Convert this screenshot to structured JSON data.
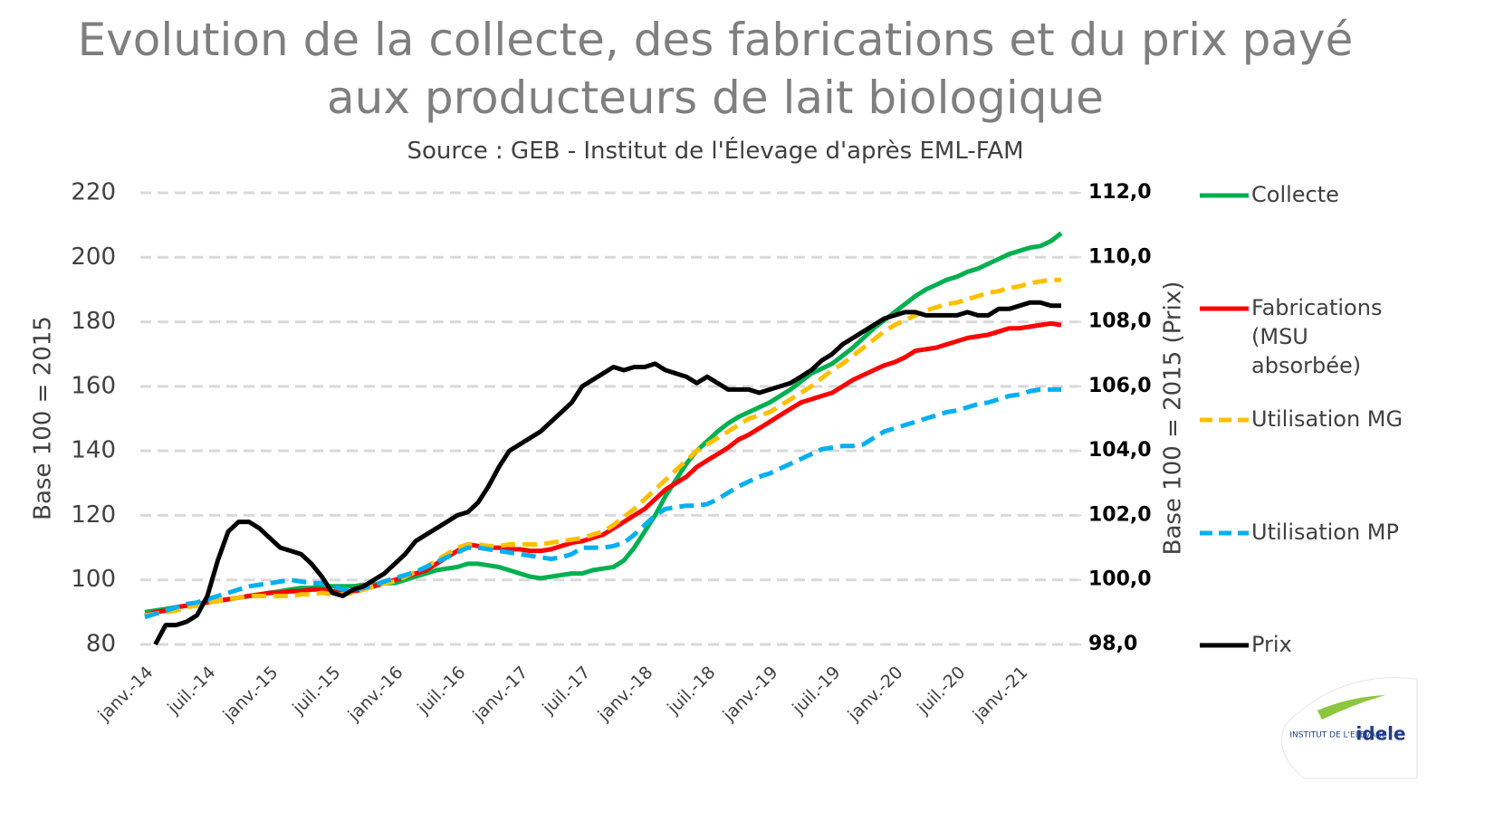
{
  "chart_data": {
    "type": "line",
    "title": "Evolution de la collecte, des fabrications et du prix payé aux producteurs de lait biologique",
    "subtitle": "Source : GEB - Institut de l'Élevage d'après EML-FAM",
    "y_label": "Base 100 = 2015",
    "y2_label": "Base 100 = 2015 (Prix)",
    "logo_text": "INSTITUT DE L'ELEVAGE",
    "logo_brand": "idele",
    "legend": "right",
    "grid": true,
    "categories": [
      "janv.-14",
      null,
      null,
      null,
      null,
      null,
      "juil.-14",
      null,
      null,
      null,
      null,
      null,
      "janv.-15",
      null,
      null,
      null,
      null,
      null,
      "juil.-15",
      null,
      null,
      null,
      null,
      null,
      "janv.-16",
      null,
      null,
      null,
      null,
      null,
      "juil.-16",
      null,
      null,
      null,
      null,
      null,
      "janv.-17",
      null,
      null,
      null,
      null,
      null,
      "juil.-17",
      null,
      null,
      null,
      null,
      null,
      "janv.-18",
      null,
      null,
      null,
      null,
      null,
      "juil.-18",
      null,
      null,
      null,
      null,
      null,
      "janv.-19",
      null,
      null,
      null,
      null,
      null,
      "juil.-19",
      null,
      null,
      null,
      null,
      null,
      "janv.-20",
      null,
      null,
      null,
      null,
      null,
      "juil.-20",
      null,
      null,
      null,
      null,
      null,
      "janv.-21",
      null,
      null,
      null,
      null
    ],
    "ylim": [
      80,
      220
    ],
    "yticks": [
      80,
      100,
      120,
      140,
      160,
      180,
      200,
      220
    ],
    "y2lim": [
      98,
      112
    ],
    "y2ticks": [
      {
        "value": 98,
        "label": "98,0"
      },
      {
        "value": 100,
        "label": "100,0"
      },
      {
        "value": 102,
        "label": "102,0"
      },
      {
        "value": 104,
        "label": "104,0"
      },
      {
        "value": 106,
        "label": "106,0"
      },
      {
        "value": 108,
        "label": "108,0"
      },
      {
        "value": 110,
        "label": "110,0"
      },
      {
        "value": 112,
        "label": "112,0"
      }
    ],
    "series": [
      {
        "name": "Collecte",
        "color": "#00b050",
        "dashed": false,
        "values": [
          90,
          90.5,
          91,
          91.5,
          92,
          92.5,
          93,
          93.5,
          94,
          94.5,
          95,
          95.5,
          96,
          96.5,
          97,
          97.5,
          97.5,
          98,
          98,
          98,
          98,
          98.5,
          98.5,
          99,
          99,
          100,
          101,
          102,
          103,
          103.5,
          104,
          105,
          105,
          104.5,
          104,
          103,
          102,
          101,
          100.5,
          101,
          101.5,
          102,
          102,
          103,
          103.5,
          104,
          106,
          110,
          115,
          120,
          126,
          131,
          136,
          140,
          143,
          146,
          148.5,
          150.5,
          152,
          153.5,
          155,
          157,
          159,
          161.5,
          164,
          165.5,
          167,
          169.5,
          172,
          175,
          178,
          180.5,
          183,
          185.5,
          188,
          190,
          191.5,
          193,
          194,
          195.5,
          196.5,
          198,
          199.5,
          201,
          202,
          203,
          203.5,
          205,
          207.5
        ]
      },
      {
        "name": "Fabrications (MSU absorbée)",
        "color": "#ff0000",
        "dashed": false,
        "values": [
          89,
          90,
          90.5,
          91.5,
          92,
          92.5,
          93,
          93.5,
          94,
          94.5,
          95,
          95.5,
          96,
          96,
          96.5,
          96.5,
          97,
          97,
          96.5,
          96,
          96.5,
          97,
          98,
          99,
          100,
          101,
          102,
          103,
          105,
          107,
          109,
          111,
          110.5,
          110,
          110,
          109.5,
          109.5,
          109,
          109,
          109.5,
          110.5,
          111.5,
          112,
          113,
          114,
          116,
          118,
          120,
          122,
          125,
          128,
          130,
          132,
          135,
          137,
          139,
          141,
          143.5,
          145,
          147,
          149,
          151,
          153,
          155,
          156,
          157,
          158,
          160,
          162,
          163.5,
          165,
          166.5,
          167.5,
          169,
          171,
          171.5,
          172,
          173,
          174,
          175,
          175.5,
          176,
          177,
          178,
          178,
          178.5,
          179,
          179.5,
          179
        ]
      },
      {
        "name": "Utilisation MG",
        "color": "#ffc000",
        "dashed": true,
        "values": [
          89,
          89.5,
          90,
          90.5,
          91.5,
          92,
          93,
          93.5,
          94,
          94.5,
          95,
          95,
          95,
          95,
          95,
          95.5,
          95.5,
          96,
          95.5,
          95.5,
          96,
          97,
          98,
          99,
          99.5,
          101,
          102.5,
          104,
          106,
          108,
          110,
          111,
          111,
          110.5,
          110.5,
          111,
          111,
          111,
          111,
          111.5,
          112,
          112.5,
          113,
          114,
          115,
          117,
          119.5,
          122,
          125,
          128,
          131,
          134,
          137,
          140,
          142,
          144,
          146,
          148,
          150,
          151,
          152,
          154,
          156,
          158,
          160,
          162.5,
          165,
          167,
          169.5,
          172,
          174.5,
          177,
          179,
          180.5,
          182,
          183.5,
          184.5,
          185.5,
          186,
          187,
          188,
          189,
          189.5,
          190.5,
          191,
          192,
          192.5,
          193,
          193
        ]
      },
      {
        "name": "Utilisation MP",
        "color": "#00b0f0",
        "dashed": true,
        "values": [
          88.5,
          89.5,
          90.5,
          91.5,
          92.5,
          93,
          94,
          95,
          96,
          97,
          98,
          98.5,
          99,
          99.5,
          100,
          99.5,
          99,
          99,
          98,
          97,
          97,
          97.5,
          98.5,
          99.5,
          100.5,
          101.5,
          102.5,
          104,
          105.5,
          107,
          108.5,
          110,
          110,
          109.5,
          109,
          108.5,
          108,
          107.5,
          107,
          106.5,
          107,
          108,
          110,
          110,
          110,
          110.5,
          111.5,
          114,
          117,
          120,
          122,
          122.5,
          123,
          123,
          123.5,
          125,
          127,
          129,
          130.5,
          132,
          133,
          134.5,
          136,
          137.5,
          139,
          140.5,
          141,
          141.5,
          141.5,
          142,
          144,
          146,
          147,
          148,
          149,
          150,
          151,
          152,
          152.5,
          153.5,
          154.5,
          155,
          156,
          157,
          157.5,
          158.5,
          159,
          159,
          159
        ]
      },
      {
        "name": "Prix",
        "color": "#000000",
        "dashed": false,
        "axis": "y2",
        "values": [
          null,
          98.0,
          98.6,
          98.6,
          98.7,
          98.9,
          99.5,
          100.6,
          101.5,
          101.8,
          101.8,
          101.6,
          101.3,
          101.0,
          100.9,
          100.8,
          100.5,
          100.1,
          99.6,
          99.5,
          99.7,
          99.8,
          100.0,
          100.2,
          100.5,
          100.8,
          101.2,
          101.4,
          101.6,
          101.8,
          102.0,
          102.1,
          102.4,
          102.9,
          103.5,
          104.0,
          104.2,
          104.4,
          104.6,
          104.9,
          105.2,
          105.5,
          106.0,
          106.2,
          106.4,
          106.6,
          106.5,
          106.6,
          106.6,
          106.7,
          106.5,
          106.4,
          106.3,
          106.1,
          106.3,
          106.1,
          105.9,
          105.9,
          105.9,
          105.8,
          105.9,
          106.0,
          106.1,
          106.3,
          106.5,
          106.8,
          107.0,
          107.3,
          107.5,
          107.7,
          107.9,
          108.1,
          108.2,
          108.3,
          108.3,
          108.2,
          108.2,
          108.2,
          108.2,
          108.3,
          108.2,
          108.2,
          108.4,
          108.4,
          108.5,
          108.6,
          108.6,
          108.5,
          108.5
        ]
      }
    ]
  }
}
